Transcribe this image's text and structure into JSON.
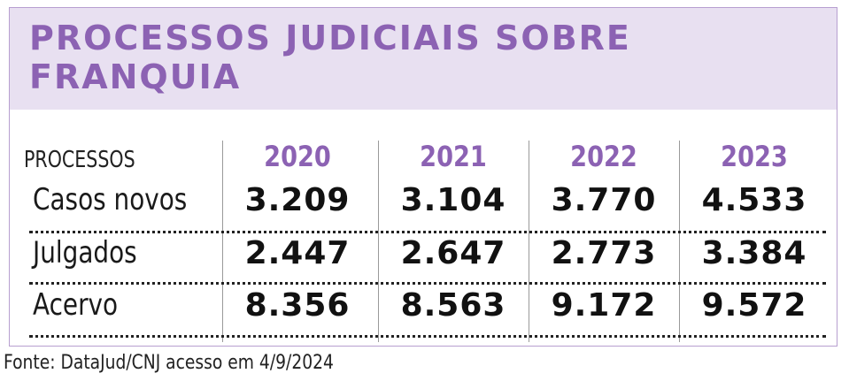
{
  "title": "PROCESSOS JUDICIAIS SOBRE FRANQUIA",
  "source": "Fonte: DataJud/CNJ acesso em 4/9/2024",
  "chart_data": {
    "type": "table",
    "title": "PROCESSOS JUDICIAIS SOBRE FRANQUIA",
    "row_header": "PROCESSOS",
    "columns": [
      "2020",
      "2021",
      "2022",
      "2023"
    ],
    "rows": [
      {
        "label": "Casos novos",
        "values": [
          "3.209",
          "3.104",
          "3.770",
          "4.533"
        ]
      },
      {
        "label": "Julgados",
        "values": [
          "2.447",
          "2.647",
          "2.773",
          "3.384"
        ]
      },
      {
        "label": "Acervo",
        "values": [
          "8.356",
          "8.563",
          "9.172",
          "9.572"
        ]
      }
    ],
    "colors": {
      "accent": "#8c62b3",
      "header_background": "#e8e0f1",
      "border": "#b79fd0"
    }
  }
}
